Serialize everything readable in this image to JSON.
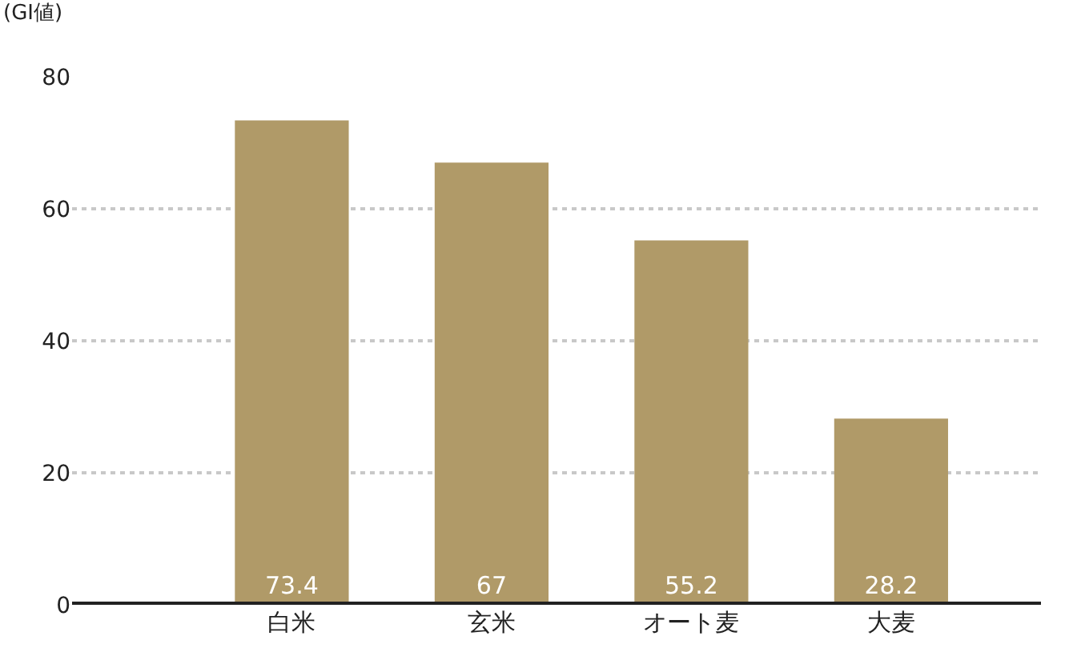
{
  "chart_data": {
    "type": "bar",
    "ylabel": "(GI値)",
    "categories": [
      "白米",
      "玄米",
      "オート麦",
      "大麦"
    ],
    "values": [
      73.4,
      67,
      55.2,
      28.2
    ],
    "color": "#b09a68",
    "ylim": [
      0,
      80
    ],
    "yticks": [
      0,
      20,
      40,
      60,
      80
    ],
    "grid": "y",
    "data_labels": true
  }
}
